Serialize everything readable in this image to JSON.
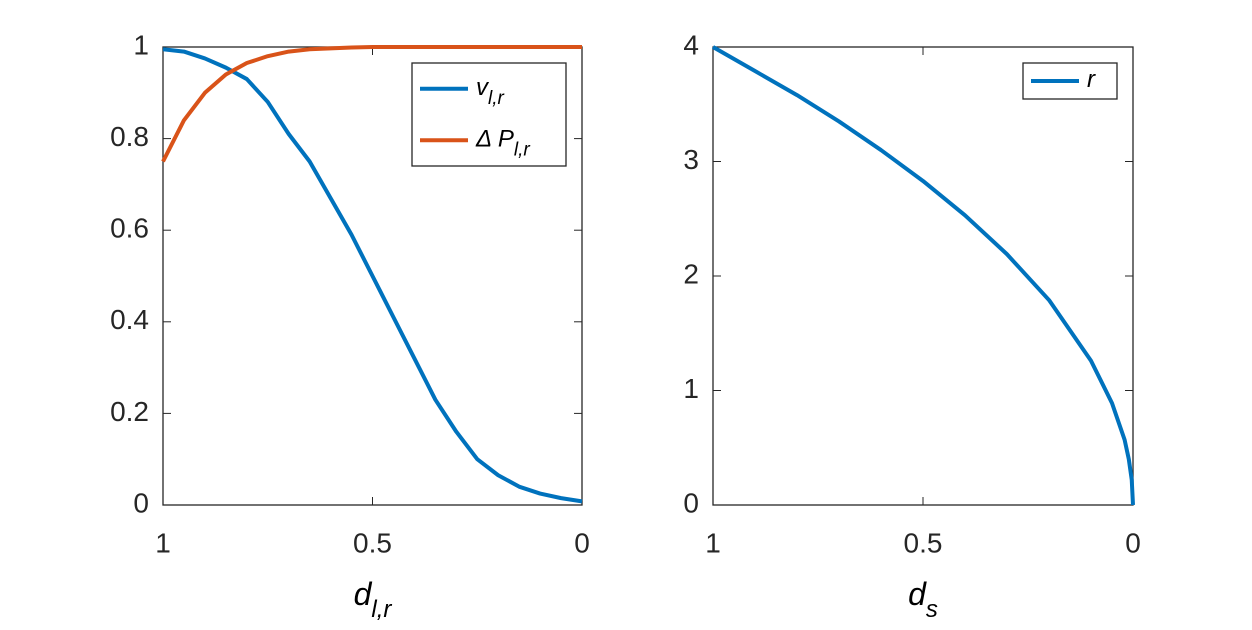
{
  "chart_data": [
    {
      "type": "line",
      "xlim": [
        1,
        0
      ],
      "xticks": [
        1,
        0.5,
        0
      ],
      "ylim": [
        0,
        1
      ],
      "yticks": [
        0,
        0.2,
        0.4,
        0.6,
        0.8,
        1
      ],
      "x_label": "d",
      "x_label_subscript": "l,r",
      "legend": "northeast",
      "x": [
        1,
        0.95,
        0.9,
        0.85,
        0.8,
        0.75,
        0.7,
        0.65,
        0.6,
        0.55,
        0.5,
        0.45,
        0.4,
        0.35,
        0.3,
        0.25,
        0.2,
        0.15,
        0.1,
        0.05,
        0
      ],
      "series": [
        {
          "name": "v",
          "subscript": "l,r",
          "color": "#0072BD",
          "values": [
            0.995,
            0.99,
            0.975,
            0.955,
            0.93,
            0.88,
            0.81,
            0.75,
            0.67,
            0.59,
            0.5,
            0.41,
            0.32,
            0.23,
            0.16,
            0.1,
            0.065,
            0.04,
            0.025,
            0.015,
            0.008
          ]
        },
        {
          "name": "Δ P",
          "subscript": "l,r",
          "color": "#D95319",
          "values": [
            0.75,
            0.84,
            0.9,
            0.94,
            0.965,
            0.98,
            0.99,
            0.995,
            0.997,
            0.999,
            1,
            1,
            1,
            1,
            1,
            1,
            1,
            1,
            1,
            1,
            1
          ]
        }
      ]
    },
    {
      "type": "line",
      "xlim": [
        1,
        0
      ],
      "xticks": [
        1,
        0.5,
        0
      ],
      "ylim": [
        0,
        4
      ],
      "yticks": [
        0,
        1,
        2,
        3,
        4
      ],
      "x_label": "d",
      "x_label_subscript": "s",
      "legend": "northeast",
      "x": [
        1,
        0.9,
        0.8,
        0.7,
        0.6,
        0.5,
        0.4,
        0.3,
        0.2,
        0.1,
        0.05,
        0.02,
        0.01,
        0.003,
        0
      ],
      "series": [
        {
          "name": "r",
          "color": "#0072BD",
          "values": [
            4,
            3.79,
            3.58,
            3.35,
            3.1,
            2.83,
            2.53,
            2.19,
            1.79,
            1.26,
            0.89,
            0.57,
            0.4,
            0.22,
            0
          ]
        }
      ]
    }
  ]
}
